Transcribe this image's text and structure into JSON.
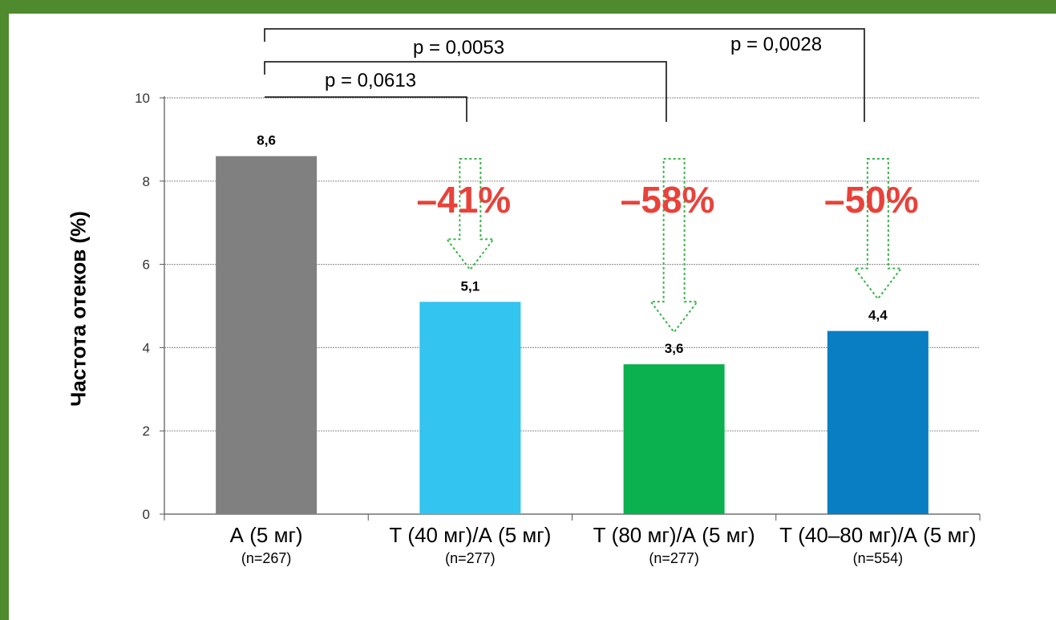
{
  "chart_data": {
    "type": "bar",
    "title": "",
    "xlabel": "",
    "ylabel": "Частота отеков (%)",
    "ylim": [
      0,
      10
    ],
    "yticks": [
      0,
      2,
      4,
      6,
      8,
      10
    ],
    "grid": true,
    "categories": [
      "А (5 мг)",
      "Т (40 мг)/А (5 мг)",
      "Т (80 мг)/А (5 мг)",
      "Т (40–80 мг)/А (5 мг)"
    ],
    "subcategories": [
      "(n=267)",
      "(n=277)",
      "(n=277)",
      "(n=554)"
    ],
    "values": [
      8.6,
      5.1,
      3.6,
      4.4
    ],
    "value_labels": [
      "8,6",
      "5,1",
      "3,6",
      "4,4"
    ],
    "colors": [
      "#808080",
      "#33c4f0",
      "#0bb04f",
      "#0a7ec2"
    ],
    "reductions": [
      {
        "category_index": 1,
        "label": "–41%"
      },
      {
        "category_index": 2,
        "label": "–58%"
      },
      {
        "category_index": 3,
        "label": "–50%"
      }
    ],
    "reduction_color": "#e8423a",
    "arrow_color": "#3cb44b",
    "comparisons": [
      {
        "from": 0,
        "to": 1,
        "label": "p = 0,0613"
      },
      {
        "from": 0,
        "to": 2,
        "label": "p = 0,0053"
      },
      {
        "from": 0,
        "to": 3,
        "label": "p = 0,0028"
      }
    ]
  }
}
